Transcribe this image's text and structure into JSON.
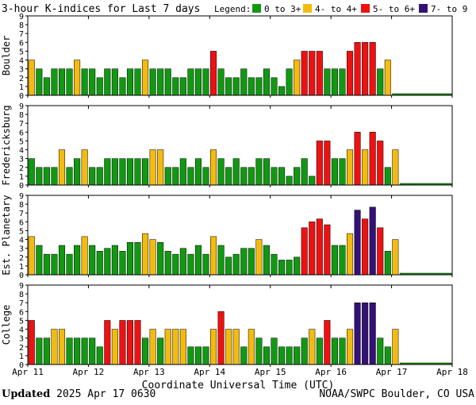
{
  "title": "3-hour K-indices for Last 7 days",
  "legend": {
    "label": "Legend:",
    "items": [
      {
        "text": "0 to 3+",
        "color": "#119911"
      },
      {
        "text": "4- to 4+",
        "color": "#f2bb0f"
      },
      {
        "text": "5- to 6+",
        "color": "#ee1111"
      },
      {
        "text": "7- to 9",
        "color": "#331177"
      }
    ]
  },
  "footer": {
    "updated_label": "Updated",
    "updated_value": "2025 Apr 17 0630",
    "source": "NOAA/SWPC Boulder, CO USA"
  },
  "chart_data": [
    {
      "type": "bar",
      "ylabel": "Boulder",
      "ylim": [
        0,
        9
      ],
      "yticks": [
        "0",
        "1",
        "2",
        "3",
        "4",
        "5",
        "6",
        "7",
        "8",
        "9"
      ],
      "xlabel": "Coordinate Universal Time (UTC)",
      "xticks": [
        "Apr 11",
        "Apr 12",
        "Apr 13",
        "Apr 14",
        "Apr 15",
        "Apr 16",
        "Apr 17",
        "Apr 18"
      ],
      "x_interval": "3 hours",
      "values": [
        4,
        3,
        2,
        3,
        3,
        3,
        4,
        3,
        3,
        2,
        3,
        3,
        2,
        3,
        3,
        4,
        3,
        3,
        3,
        2,
        2,
        3,
        3,
        3,
        5,
        3,
        2,
        2,
        3,
        2,
        2,
        3,
        2,
        1,
        3,
        4,
        5,
        5,
        5,
        3,
        3,
        3,
        5,
        6,
        6,
        6,
        3,
        4
      ]
    },
    {
      "type": "bar",
      "ylabel": "Fredericksburg",
      "ylim": [
        0,
        9
      ],
      "yticks": [
        "0",
        "1",
        "2",
        "3",
        "4",
        "5",
        "6",
        "7",
        "8",
        "9"
      ],
      "xlabel": "Coordinate Universal Time (UTC)",
      "xticks": [
        "Apr 11",
        "Apr 12",
        "Apr 13",
        "Apr 14",
        "Apr 15",
        "Apr 16",
        "Apr 17",
        "Apr 18"
      ],
      "x_interval": "3 hours",
      "values": [
        3,
        2,
        2,
        2,
        4,
        2,
        3,
        4,
        2,
        2,
        3,
        3,
        3,
        3,
        3,
        3,
        4,
        4,
        2,
        2,
        3,
        2,
        3,
        2,
        4,
        3,
        2,
        3,
        2,
        2,
        3,
        3,
        2,
        2,
        1,
        2,
        3,
        1,
        5,
        5,
        3,
        3,
        4,
        6,
        4,
        6,
        5,
        2,
        4
      ]
    },
    {
      "type": "bar",
      "ylabel": "Est. Planetary",
      "ylim": [
        0,
        9
      ],
      "yticks": [
        "0",
        "1",
        "2",
        "3",
        "4",
        "5",
        "6",
        "7",
        "8",
        "9"
      ],
      "xlabel": "Coordinate Universal Time (UTC)",
      "xticks": [
        "Apr 11",
        "Apr 12",
        "Apr 13",
        "Apr 14",
        "Apr 15",
        "Apr 16",
        "Apr 17",
        "Apr 18"
      ],
      "x_interval": "3 hours",
      "values": [
        4.33,
        3.33,
        2.33,
        2.33,
        3.33,
        2.33,
        3.33,
        4.33,
        3.33,
        2.67,
        3.0,
        3.33,
        2.67,
        3.67,
        3.67,
        4.67,
        4.0,
        3.67,
        2.67,
        2.33,
        3.0,
        2.33,
        3.33,
        2.33,
        4.33,
        3.33,
        2.0,
        2.33,
        3.0,
        3.0,
        4.0,
        3.33,
        2.33,
        1.67,
        1.67,
        2.0,
        5.33,
        6.0,
        6.33,
        5.67,
        3.33,
        3.33,
        4.67,
        7.33,
        6.33,
        7.67,
        5.33,
        2.67,
        4.0
      ]
    },
    {
      "type": "bar",
      "ylabel": "College",
      "ylim": [
        0,
        9
      ],
      "yticks": [
        "0",
        "1",
        "2",
        "3",
        "4",
        "5",
        "6",
        "7",
        "8",
        "9"
      ],
      "xlabel": "Coordinate Universal Time (UTC)",
      "xticks": [
        "Apr 11",
        "Apr 12",
        "Apr 13",
        "Apr 14",
        "Apr 15",
        "Apr 16",
        "Apr 17",
        "Apr 18"
      ],
      "x_interval": "3 hours",
      "values": [
        5,
        3,
        3,
        4,
        4,
        3,
        3,
        3,
        3,
        2,
        5,
        4,
        5,
        5,
        5,
        3,
        4,
        3,
        4,
        4,
        4,
        2,
        2,
        2,
        4,
        6,
        4,
        4,
        2,
        4,
        3,
        2,
        3,
        2,
        2,
        2,
        3,
        4,
        3,
        5,
        3,
        3,
        4,
        7,
        7,
        7,
        3,
        2,
        4
      ]
    }
  ]
}
